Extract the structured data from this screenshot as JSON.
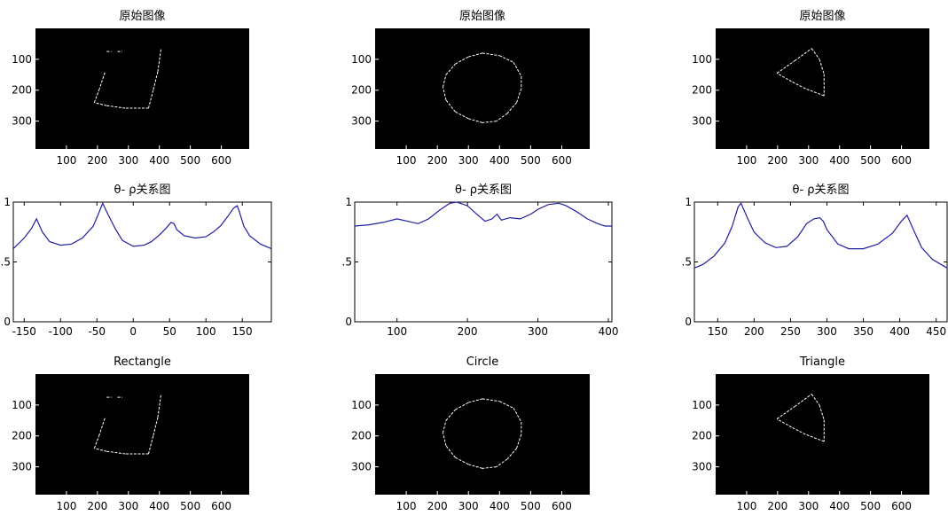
{
  "chart_data": [
    {
      "type": "image",
      "title": "原始图像",
      "xticks": [
        100,
        200,
        300,
        400,
        500,
        600
      ],
      "yticks": [
        100,
        200,
        300
      ],
      "xlim": [
        0,
        690
      ],
      "ylim": [
        0,
        390
      ],
      "shape": "quadrilateral",
      "outline": [
        [
          190,
          240
        ],
        [
          205,
          200
        ],
        [
          225,
          140
        ],
        [
          230,
          75
        ],
        [
          245,
          75
        ],
        [
          265,
          75
        ],
        [
          280,
          75
        ],
        [
          405,
          68
        ],
        [
          395,
          140
        ],
        [
          380,
          200
        ],
        [
          365,
          258
        ],
        [
          290,
          258
        ],
        [
          230,
          250
        ],
        [
          190,
          240
        ]
      ],
      "gaps": [
        [
          2,
          3
        ],
        [
          4,
          5
        ],
        [
          6,
          7
        ]
      ]
    },
    {
      "type": "image",
      "title": "原始图像",
      "xticks": [
        100,
        200,
        300,
        400,
        500,
        600
      ],
      "yticks": [
        100,
        200,
        300
      ],
      "xlim": [
        0,
        690
      ],
      "ylim": [
        0,
        390
      ],
      "shape": "closed-curve",
      "outline": [
        [
          345,
          80
        ],
        [
          400,
          88
        ],
        [
          445,
          110
        ],
        [
          470,
          155
        ],
        [
          470,
          195
        ],
        [
          455,
          240
        ],
        [
          425,
          275
        ],
        [
          390,
          300
        ],
        [
          345,
          305
        ],
        [
          300,
          292
        ],
        [
          258,
          270
        ],
        [
          228,
          232
        ],
        [
          218,
          190
        ],
        [
          228,
          150
        ],
        [
          258,
          115
        ],
        [
          300,
          92
        ],
        [
          345,
          80
        ]
      ],
      "gaps": []
    },
    {
      "type": "image",
      "title": "原始图像",
      "xticks": [
        100,
        200,
        300,
        400,
        500,
        600
      ],
      "yticks": [
        100,
        200,
        300
      ],
      "xlim": [
        0,
        690
      ],
      "ylim": [
        0,
        390
      ],
      "shape": "triangle",
      "outline": [
        [
          198,
          145
        ],
        [
          255,
          105
        ],
        [
          310,
          65
        ],
        [
          335,
          100
        ],
        [
          350,
          148
        ],
        [
          350,
          218
        ],
        [
          290,
          195
        ],
        [
          245,
          172
        ],
        [
          198,
          145
        ]
      ],
      "gaps": []
    },
    {
      "type": "line",
      "title": "θ- ρ关系图",
      "xlim": [
        -165,
        190
      ],
      "ylim": [
        0,
        1
      ],
      "xticks": [
        -150,
        -100,
        -50,
        0,
        50,
        100,
        150
      ],
      "yticks": [
        0,
        0.5,
        1
      ],
      "ytick_labels": [
        "0",
        ".5",
        "1"
      ],
      "series": [
        {
          "color": "#1f1fa0",
          "x": [
            -165,
            -150,
            -140,
            -133,
            -125,
            -115,
            -100,
            -85,
            -70,
            -55,
            -48,
            -42,
            -35,
            -25,
            -15,
            0,
            15,
            25,
            35,
            45,
            52,
            56,
            60,
            70,
            85,
            100,
            110,
            120,
            130,
            138,
            143,
            146,
            152,
            160,
            175,
            190
          ],
          "y": [
            0.61,
            0.7,
            0.78,
            0.86,
            0.75,
            0.67,
            0.64,
            0.65,
            0.7,
            0.8,
            0.9,
            0.99,
            0.9,
            0.78,
            0.68,
            0.63,
            0.64,
            0.67,
            0.72,
            0.78,
            0.83,
            0.82,
            0.77,
            0.72,
            0.7,
            0.71,
            0.75,
            0.8,
            0.88,
            0.95,
            0.97,
            0.92,
            0.8,
            0.72,
            0.65,
            0.61
          ]
        }
      ]
    },
    {
      "type": "line",
      "title": "θ- ρ关系图",
      "xlim": [
        40,
        405
      ],
      "ylim": [
        0,
        1
      ],
      "xticks": [
        100,
        200,
        300,
        400
      ],
      "yticks": [
        0,
        0.5,
        1
      ],
      "ytick_labels": [
        "0",
        ".5",
        "1"
      ],
      "series": [
        {
          "color": "#1f1fa0",
          "x": [
            40,
            60,
            80,
            100,
            115,
            130,
            145,
            160,
            175,
            185,
            200,
            215,
            225,
            235,
            242,
            248,
            260,
            275,
            290,
            300,
            315,
            330,
            340,
            355,
            370,
            385,
            395,
            405
          ],
          "y": [
            0.8,
            0.81,
            0.83,
            0.86,
            0.84,
            0.82,
            0.86,
            0.93,
            0.99,
            1.0,
            0.97,
            0.89,
            0.84,
            0.86,
            0.9,
            0.85,
            0.87,
            0.86,
            0.9,
            0.94,
            0.98,
            0.99,
            0.97,
            0.92,
            0.86,
            0.82,
            0.8,
            0.8
          ]
        }
      ]
    },
    {
      "type": "line",
      "title": "θ- ρ关系图",
      "xlim": [
        118,
        465
      ],
      "ylim": [
        0,
        1
      ],
      "xticks": [
        150,
        200,
        250,
        300,
        350,
        400,
        450
      ],
      "yticks": [
        0,
        0.5,
        1
      ],
      "ytick_labels": [
        "0",
        ".5",
        "1"
      ],
      "series": [
        {
          "color": "#1f1fa0",
          "x": [
            118,
            130,
            145,
            160,
            170,
            178,
            182,
            190,
            200,
            215,
            230,
            245,
            260,
            272,
            282,
            290,
            295,
            300,
            315,
            330,
            350,
            370,
            390,
            402,
            410,
            418,
            430,
            445,
            465
          ],
          "y": [
            0.45,
            0.48,
            0.55,
            0.66,
            0.8,
            0.96,
            0.99,
            0.88,
            0.75,
            0.66,
            0.62,
            0.63,
            0.71,
            0.82,
            0.86,
            0.87,
            0.84,
            0.77,
            0.65,
            0.61,
            0.61,
            0.65,
            0.74,
            0.84,
            0.89,
            0.78,
            0.62,
            0.52,
            0.45
          ]
        }
      ]
    },
    {
      "type": "image",
      "title": "Rectangle",
      "xticks": [
        100,
        200,
        300,
        400,
        500,
        600
      ],
      "yticks": [
        100,
        200,
        300
      ],
      "xlim": [
        0,
        690
      ],
      "ylim": [
        0,
        390
      ],
      "shape": "quadrilateral",
      "outline": [
        [
          190,
          240
        ],
        [
          205,
          200
        ],
        [
          225,
          140
        ],
        [
          230,
          75
        ],
        [
          245,
          75
        ],
        [
          265,
          75
        ],
        [
          280,
          75
        ],
        [
          405,
          68
        ],
        [
          395,
          140
        ],
        [
          380,
          200
        ],
        [
          365,
          258
        ],
        [
          290,
          258
        ],
        [
          230,
          250
        ],
        [
          190,
          240
        ]
      ],
      "gaps": [
        [
          2,
          3
        ],
        [
          4,
          5
        ],
        [
          6,
          7
        ]
      ]
    },
    {
      "type": "image",
      "title": "Circle",
      "xticks": [
        100,
        200,
        300,
        400,
        500,
        600
      ],
      "yticks": [
        100,
        200,
        300
      ],
      "xlim": [
        0,
        690
      ],
      "ylim": [
        0,
        390
      ],
      "shape": "closed-curve",
      "outline": [
        [
          345,
          80
        ],
        [
          400,
          88
        ],
        [
          445,
          110
        ],
        [
          470,
          155
        ],
        [
          470,
          195
        ],
        [
          455,
          240
        ],
        [
          425,
          275
        ],
        [
          390,
          300
        ],
        [
          345,
          305
        ],
        [
          300,
          292
        ],
        [
          258,
          270
        ],
        [
          228,
          232
        ],
        [
          218,
          190
        ],
        [
          228,
          150
        ],
        [
          258,
          115
        ],
        [
          300,
          92
        ],
        [
          345,
          80
        ]
      ],
      "gaps": []
    },
    {
      "type": "image",
      "title": "Triangle",
      "xticks": [
        100,
        200,
        300,
        400,
        500,
        600
      ],
      "yticks": [
        100,
        200,
        300
      ],
      "xlim": [
        0,
        690
      ],
      "ylim": [
        0,
        390
      ],
      "shape": "triangle",
      "outline": [
        [
          198,
          145
        ],
        [
          255,
          105
        ],
        [
          310,
          65
        ],
        [
          335,
          100
        ],
        [
          350,
          148
        ],
        [
          350,
          218
        ],
        [
          290,
          195
        ],
        [
          245,
          172
        ],
        [
          198,
          145
        ]
      ],
      "gaps": []
    }
  ]
}
